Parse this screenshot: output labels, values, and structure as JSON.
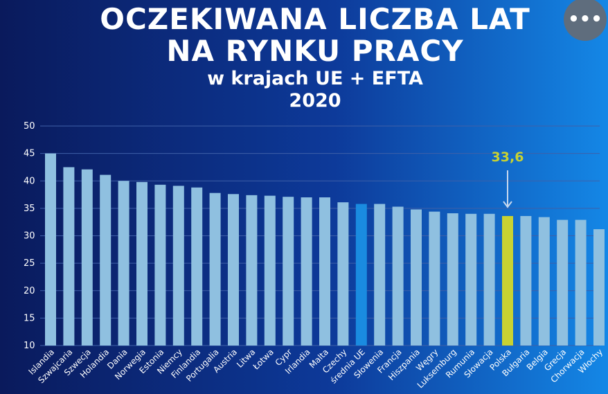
{
  "menu": {
    "more_icon_label": "•••"
  },
  "colors": {
    "bar": "#8fc0e0",
    "average": "#1a8be0",
    "poland": "#c8d232",
    "grid": "#3f60a8",
    "text": "#ffffff"
  },
  "chart_data": {
    "type": "bar",
    "title": "OCZEKIWANA LICZBA LAT",
    "title_line2": "NA RYNKU  PRACY",
    "subtitle": "w krajach UE + EFTA",
    "year": "2020",
    "xlabel": "",
    "ylabel": "",
    "ylim": [
      10,
      50
    ],
    "yticks": [
      10,
      15,
      20,
      25,
      30,
      35,
      40,
      45,
      50
    ],
    "grid": true,
    "categories": [
      "Islandia",
      "Szwajcaria",
      "Szwecja",
      "Holandia",
      "Dania",
      "Norwegia",
      "Estonia",
      "Niemcy",
      "Finlandia",
      "Portugalia",
      "Austria",
      "Litwa",
      "Łotwa",
      "Cypr",
      "Irlandia",
      "Malta",
      "Czechy",
      "średnia UE",
      "Słowenia",
      "Francja",
      "Hiszpania",
      "Węgry",
      "Luksemburg",
      "Rumunia",
      "Słowacja",
      "Polska",
      "Bułgaria",
      "Belgia",
      "Grecja",
      "Chorwacja",
      "Włochy"
    ],
    "values": [
      45.0,
      42.5,
      42.1,
      41.1,
      40.0,
      39.8,
      39.3,
      39.1,
      38.8,
      37.8,
      37.6,
      37.4,
      37.3,
      37.1,
      37.0,
      37.0,
      36.1,
      35.8,
      35.8,
      35.3,
      34.8,
      34.4,
      34.1,
      34.0,
      34.0,
      33.6,
      33.6,
      33.4,
      32.9,
      32.9,
      31.2
    ],
    "highlight_average": "średnia UE",
    "highlight_country": "Polska",
    "annotation": {
      "label": "33,6",
      "target": "Polska"
    }
  }
}
